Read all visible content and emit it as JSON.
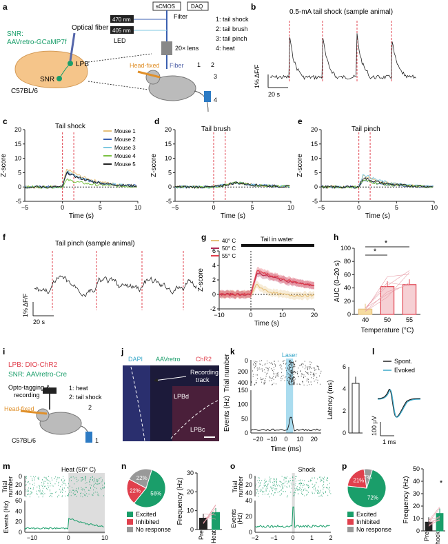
{
  "panels": {
    "a": {
      "letter": "a",
      "snr_label": "SNR:",
      "virus_label": "AAVretro-GCaMP7f",
      "fiber_label": "Optical fiber",
      "lpb": "LPB",
      "snr": "SNR",
      "strain": "C57BL/6",
      "nm470": "470 nm",
      "nm405": "405 nm",
      "led": "LED",
      "scmos": "sCMOS",
      "daq": "DAQ",
      "filter": "Filter",
      "lens": "20× lens",
      "headfixed": "Head-fixed",
      "fiber": "Fiber",
      "stim_list": [
        "1: tail shock",
        "2: tail brush",
        "3: tail pinch",
        "4: heat"
      ],
      "n1": "1",
      "n2": "2",
      "n3": "3",
      "n4": "4"
    },
    "b": {
      "letter": "b",
      "title": "0.5-mA tail shock (sample animal)",
      "ylab": "1% ΔF/F",
      "xlab": "20 s"
    },
    "c": {
      "letter": "c",
      "title": "Tail shock",
      "ylabel": "Z-score",
      "xlabel": "Time (s)",
      "legend": [
        "Mouse 1",
        "Mouse 2",
        "Mouse 3",
        "Mouse 4",
        "Mouse 5"
      ],
      "yticks": [
        "20",
        "15",
        "10",
        "5",
        "0",
        "-5"
      ],
      "xticks": [
        "0",
        "5",
        "10"
      ],
      "xtick_neg": "−5"
    },
    "d": {
      "letter": "d",
      "title": "Tail brush",
      "ylabel": "Z-score",
      "xlabel": "Time (s)",
      "yticks": [
        "20",
        "15",
        "10",
        "5",
        "0",
        "-5"
      ],
      "xticks": [
        "0",
        "5",
        "10"
      ],
      "xtick_neg": "−5"
    },
    "e": {
      "letter": "e",
      "title": "Tail pinch",
      "ylabel": "Z-score",
      "xlabel": "Time (s)",
      "yticks": [
        "20",
        "15",
        "10",
        "5",
        "0",
        "-5"
      ],
      "xticks": [
        "0",
        "5",
        "10"
      ],
      "xtick_neg": "−5"
    },
    "f": {
      "letter": "f",
      "title": "Tail pinch (sample animal)",
      "ylab": "1% ΔF/F",
      "xlab": "20 s"
    },
    "g": {
      "letter": "g",
      "legend": [
        "40° C",
        "50° C",
        "55° C"
      ],
      "bar_label": "Tail in water",
      "ylabel": "Z-score",
      "xlabel": "Time (s)",
      "yticks": [
        "6",
        "4",
        "2",
        "0",
        "-2"
      ],
      "xticks": [
        "−10",
        "0",
        "10",
        "20"
      ]
    },
    "h": {
      "letter": "h",
      "ylabel": "AUC (0–20 s)",
      "xlabel": "Temperature (°C)",
      "cats": [
        "40",
        "50",
        "55"
      ],
      "yticks": [
        "100",
        "80",
        "60",
        "40",
        "20",
        "0"
      ],
      "star1": "*",
      "star2": "*"
    },
    "i": {
      "letter": "i",
      "lpb": "LPB: DIO-ChR2",
      "snr": "SNR: AAVretro-Cre",
      "opto": "Opto-tagging &",
      "recording": "recording",
      "heat": "1: heat",
      "shock": "2: tail shock",
      "headfixed": "Head-fixed",
      "strain": "C57BL/6",
      "n1": "1",
      "n2": "2"
    },
    "j": {
      "letter": "j",
      "dapi": "DAPI",
      "aav": "AAVretro",
      "chr2": "ChR2",
      "track": "Recording",
      "track2": "track",
      "lpbd": "LPBd",
      "lpbc": "LPBc"
    },
    "k": {
      "letter": "k",
      "laser": "Laser",
      "trial": "Trial number",
      "events": "Events (Hz)",
      "xlabel": "Time (ms)",
      "latency": "Latency (ms)",
      "rticks": [
        "0",
        "200",
        "400"
      ],
      "eticks": [
        "150",
        "100",
        "50",
        "0"
      ],
      "xticks": [
        "−20",
        "−10",
        "0",
        "10",
        "20"
      ],
      "lticks": [
        "6",
        "4",
        "2",
        "0"
      ]
    },
    "l": {
      "letter": "l",
      "legend": [
        "Spont.",
        "Evoked"
      ],
      "scale_v": "100 μV",
      "scale_t": "1 ms"
    },
    "m": {
      "letter": "m",
      "title": "Heat (50° C)",
      "trial": "Trial",
      "number": "number",
      "events": "Events (Hz)",
      "xlabel": "Time (s)",
      "rticks": [
        "0",
        "20",
        "40"
      ],
      "eticks": [
        "60",
        "40",
        "20",
        "0"
      ],
      "xticks": [
        "−10",
        "0",
        "10"
      ]
    },
    "n": {
      "letter": "n",
      "pie": [
        {
          "label": "Excited",
          "pct": "56%"
        },
        {
          "label": "Inhibited",
          "pct": "22%"
        },
        {
          "label": "No response",
          "pct": "22%"
        }
      ],
      "ylabel": "Frequency (Hz)",
      "cats": [
        "Pre",
        "Heat"
      ],
      "yticks": [
        "30",
        "20",
        "10",
        "0"
      ]
    },
    "o": {
      "letter": "o",
      "title": "Shock",
      "trial": "Trial",
      "number": "number",
      "events": "Events",
      "hz": "(Hz)",
      "xlabel": "Time (s)",
      "rticks": [
        "0",
        "20",
        "40"
      ],
      "eticks": [
        "40",
        "20",
        "0"
      ],
      "xticks": [
        "−2",
        "−1",
        "0",
        "1",
        "2"
      ]
    },
    "p": {
      "letter": "p",
      "pie": [
        {
          "label": "Excited",
          "pct": "72%"
        },
        {
          "label": "Inhibited",
          "pct": "21%"
        },
        {
          "label": "No response",
          "pct": "7%"
        }
      ],
      "ylabel": "Frequency (Hz)",
      "cats": [
        "Pre",
        "Shock"
      ],
      "yticks": [
        "50",
        "40",
        "30",
        "20",
        "10",
        "0"
      ],
      "star": "*"
    }
  },
  "colors": {
    "mouse": [
      "#e6c07a",
      "#3b5fb0",
      "#7fc9e0",
      "#7ac142",
      "#222222"
    ],
    "red": "#e0404d",
    "green": "#1a9e6a",
    "gray": "#999999",
    "cyan": "#3aa8c9"
  },
  "chart_data": [
    {
      "type": "bar",
      "panel": "h",
      "categories": [
        "40",
        "50",
        "55"
      ],
      "values": [
        8,
        42,
        45
      ],
      "ylabel": "AUC (0–20 s)",
      "xlabel": "Temperature (°C)",
      "ylim": [
        0,
        100
      ]
    },
    {
      "type": "bar",
      "panel": "n",
      "categories": [
        "Pre",
        "Heat"
      ],
      "values": [
        6,
        9
      ],
      "ylabel": "Frequency (Hz)",
      "ylim": [
        0,
        30
      ]
    },
    {
      "type": "bar",
      "panel": "p",
      "categories": [
        "Pre",
        "Shock"
      ],
      "values": [
        7,
        14
      ],
      "ylabel": "Frequency (Hz)",
      "ylim": [
        0,
        50
      ]
    },
    {
      "type": "bar",
      "panel": "k",
      "categories": [
        ""
      ],
      "values": [
        4.5
      ],
      "ylabel": "Latency (ms)",
      "ylim": [
        0,
        6
      ]
    },
    {
      "type": "pie",
      "panel": "n",
      "labels": [
        "Excited",
        "Inhibited",
        "No response"
      ],
      "values": [
        56,
        22,
        22
      ]
    },
    {
      "type": "pie",
      "panel": "p",
      "labels": [
        "Excited",
        "Inhibited",
        "No response"
      ],
      "values": [
        72,
        21,
        7
      ]
    },
    {
      "type": "line",
      "panel": "c",
      "title": "Tail shock",
      "xlabel": "Time (s)",
      "ylabel": "Z-score",
      "xlim": [
        -5,
        10
      ],
      "ylim": [
        -5,
        20
      ],
      "x": [
        -5,
        0,
        1,
        2,
        3,
        5,
        8,
        10
      ],
      "series": [
        {
          "name": "Mouse 1",
          "values": [
            0,
            0,
            7,
            6,
            5,
            3,
            1,
            0.5
          ]
        },
        {
          "name": "Mouse 2",
          "values": [
            0,
            0,
            6,
            5,
            4,
            2.5,
            1,
            0.5
          ]
        },
        {
          "name": "Mouse 3",
          "values": [
            0,
            0,
            6.5,
            5.5,
            4.5,
            2.8,
            1,
            0.5
          ]
        },
        {
          "name": "Mouse 4",
          "values": [
            0,
            0,
            3,
            2.5,
            2,
            1,
            0.5,
            0
          ]
        },
        {
          "name": "Mouse 5",
          "values": [
            0,
            0,
            6,
            5,
            4,
            2.5,
            1,
            0.5
          ]
        }
      ]
    },
    {
      "type": "line",
      "panel": "g",
      "xlabel": "Time (s)",
      "ylabel": "Z-score",
      "xlim": [
        -10,
        20
      ],
      "ylim": [
        -2,
        6
      ],
      "x": [
        -10,
        0,
        2,
        5,
        10,
        15,
        20
      ],
      "series": [
        {
          "name": "40° C",
          "values": [
            0,
            0,
            1.5,
            1,
            0,
            -0.2,
            0
          ]
        },
        {
          "name": "50° C",
          "values": [
            0,
            0,
            3,
            2.8,
            2,
            1.6,
            1.2
          ]
        },
        {
          "name": "55° C",
          "values": [
            0,
            0,
            3.3,
            3.2,
            2.5,
            2,
            1.5
          ]
        }
      ]
    }
  ]
}
